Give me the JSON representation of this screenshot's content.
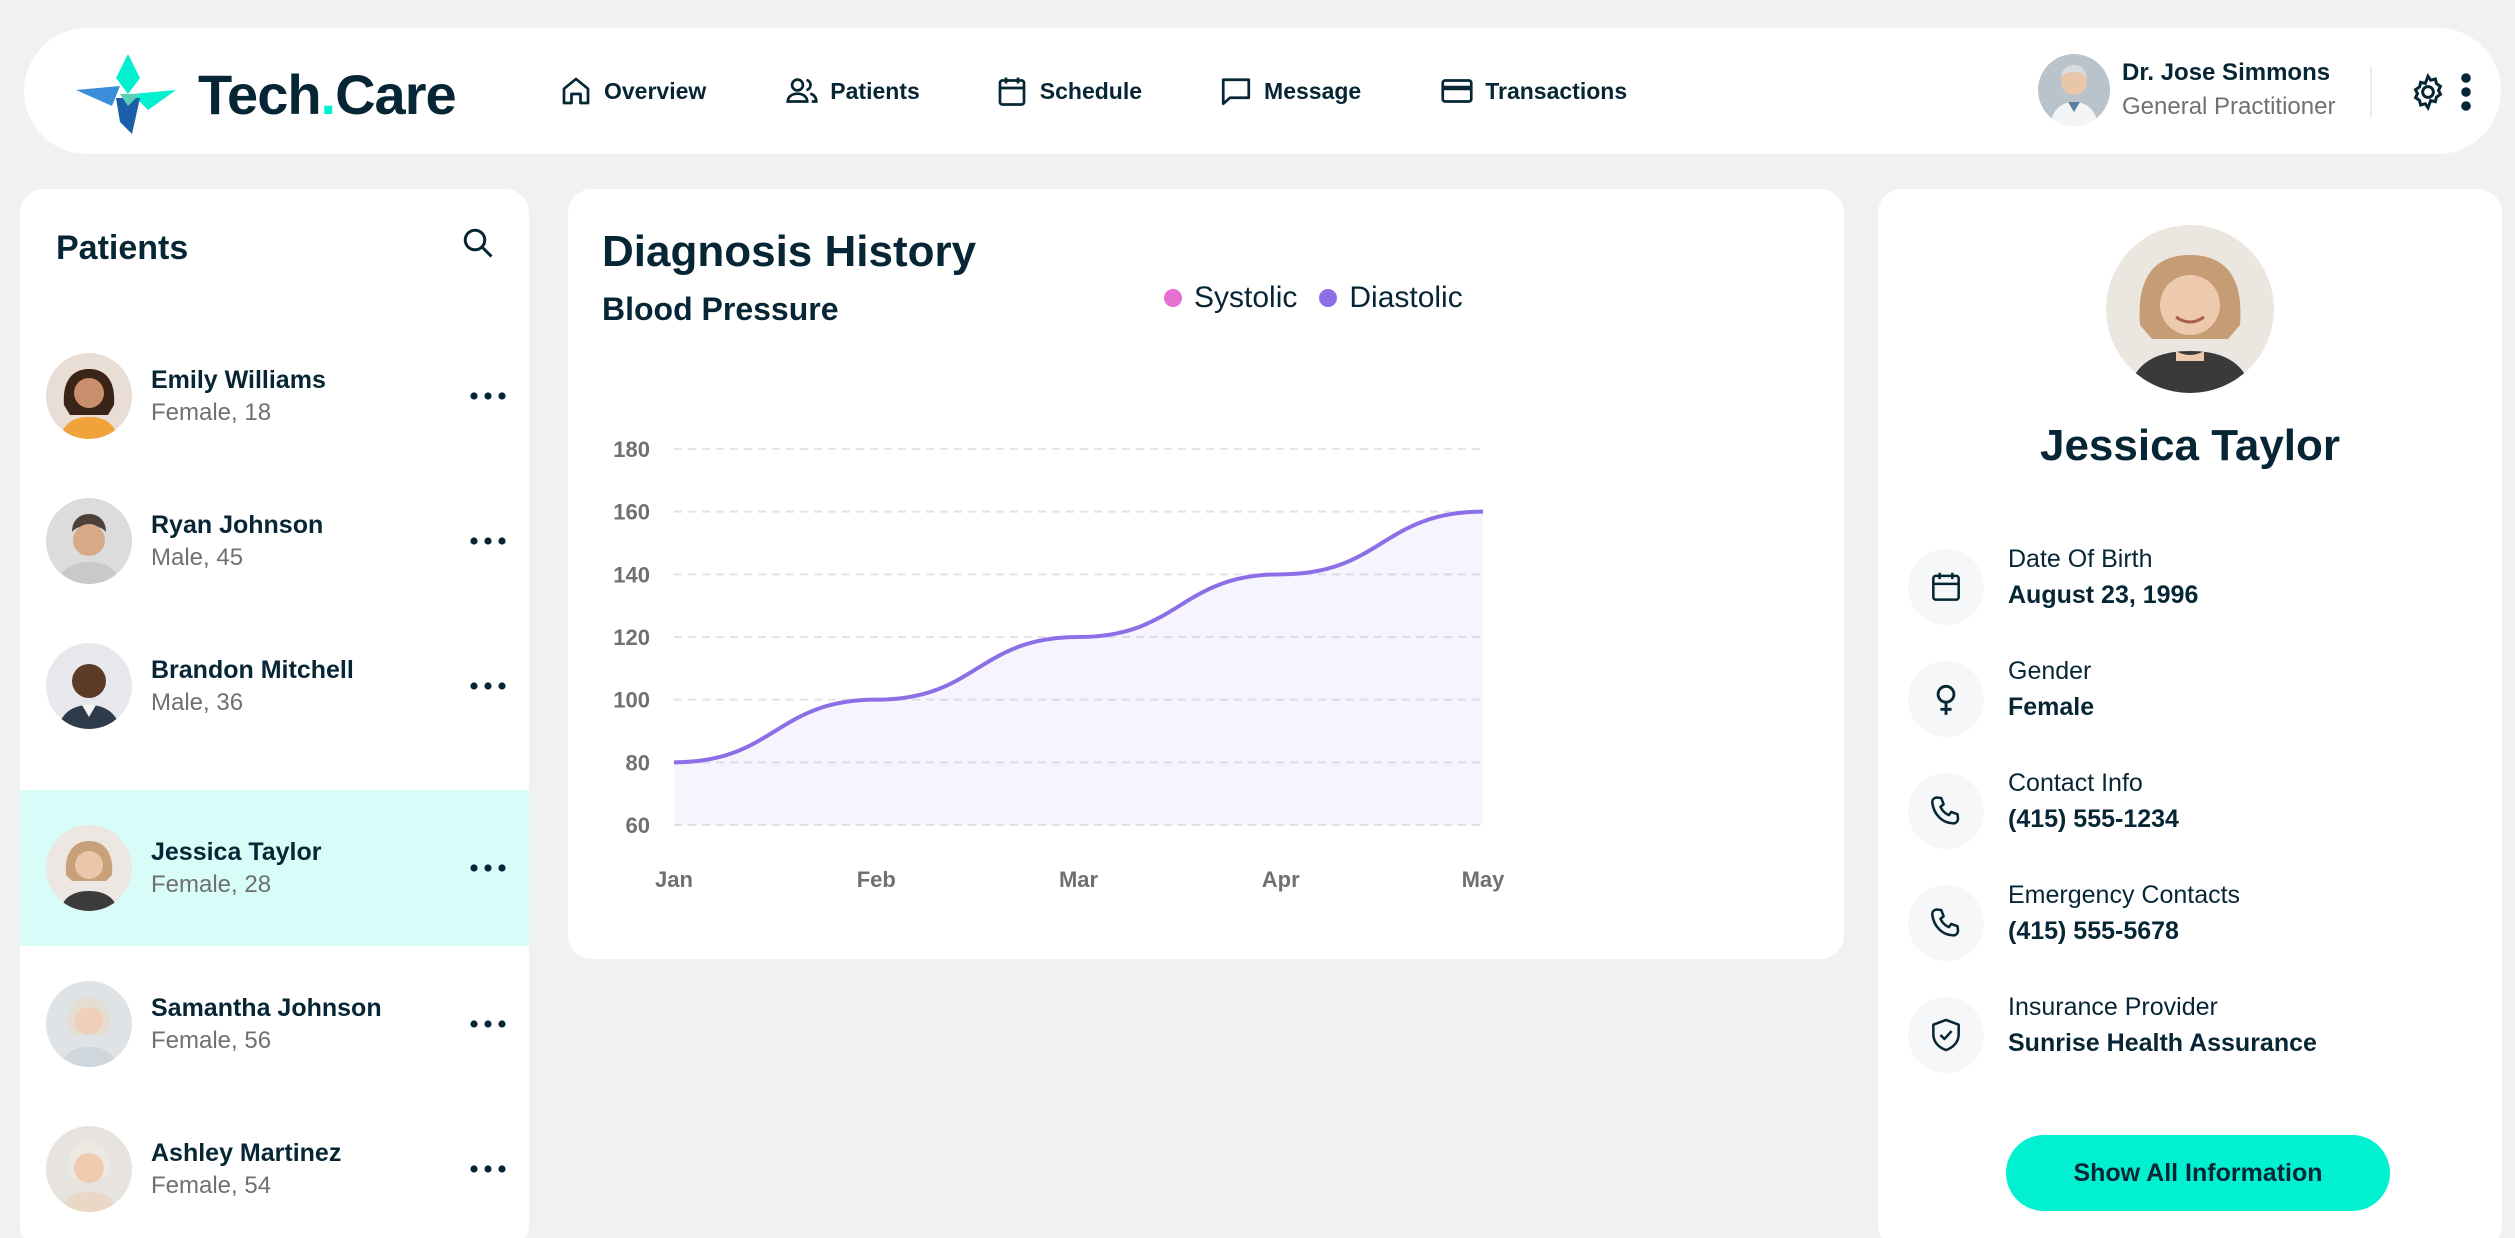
{
  "app": {
    "logo_text_a": "Tech",
    "logo_text_dot": ".",
    "logo_text_b": "Care"
  },
  "nav": [
    {
      "label": "Overview",
      "icon": "home-icon"
    },
    {
      "label": "Patients",
      "icon": "users-icon"
    },
    {
      "label": "Schedule",
      "icon": "calendar-icon"
    },
    {
      "label": "Message",
      "icon": "chat-icon"
    },
    {
      "label": "Transactions",
      "icon": "credit-card-icon"
    }
  ],
  "doctor": {
    "name": "Dr. Jose Simmons",
    "role": "General Practitioner"
  },
  "patients_panel": {
    "title": "Patients",
    "items": [
      {
        "name": "Emily Williams",
        "meta": "Female, 18",
        "active": false
      },
      {
        "name": "Ryan Johnson",
        "meta": "Male, 45",
        "active": false
      },
      {
        "name": "Brandon Mitchell",
        "meta": "Male, 36",
        "active": false
      },
      {
        "name": "Jessica Taylor",
        "meta": "Female, 28",
        "active": true
      },
      {
        "name": "Samantha Johnson",
        "meta": "Female, 56",
        "active": false
      },
      {
        "name": "Ashley Martinez",
        "meta": "Female, 54",
        "active": false
      }
    ]
  },
  "diagnosis": {
    "title": "Diagnosis History",
    "subtitle": "Blood Pressure"
  },
  "chart_data": {
    "type": "area",
    "title": "Blood Pressure",
    "categories": [
      "Jan",
      "Feb",
      "Mar",
      "Apr",
      "May"
    ],
    "series": [
      {
        "name": "Diastolic",
        "values": [
          80,
          100,
          120,
          140,
          160
        ],
        "color": "#8c6fe6"
      }
    ],
    "legend": [
      {
        "name": "Systolic",
        "color": "#e66fd2"
      },
      {
        "name": "Diastolic",
        "color": "#8c6fe6"
      }
    ],
    "yticks": [
      60,
      80,
      100,
      120,
      140,
      160,
      180
    ],
    "ylim": [
      60,
      180
    ],
    "grid": true,
    "legend_position": "top"
  },
  "profile": {
    "name": "Jessica Taylor",
    "fields": [
      {
        "label": "Date Of Birth",
        "value": "August 23, 1996",
        "icon": "calendar-icon"
      },
      {
        "label": "Gender",
        "value": "Female",
        "icon": "female-icon"
      },
      {
        "label": "Contact Info",
        "value": "(415) 555-1234",
        "icon": "phone-icon"
      },
      {
        "label": "Emergency Contacts",
        "value": "(415) 555-5678",
        "icon": "phone-icon"
      },
      {
        "label": "Insurance Provider",
        "value": "Sunrise Health Assurance",
        "icon": "shield-check-icon"
      }
    ],
    "button_label": "Show All Information"
  },
  "colors": {
    "accent": "#01f0d0",
    "active_row": "#d8fcf7",
    "text": "#072635",
    "muted": "#707070"
  }
}
